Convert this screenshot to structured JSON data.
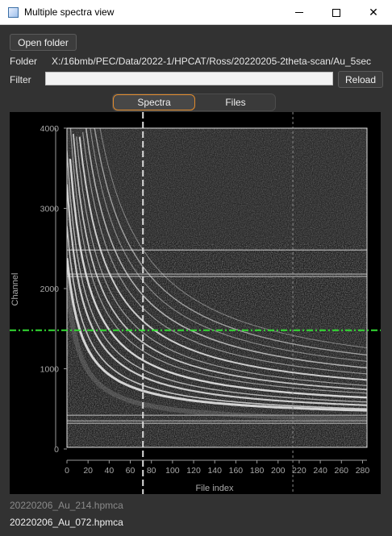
{
  "window": {
    "title": "Multiple spectra view",
    "controls": [
      "minimize-icon",
      "maximize-icon",
      "close-icon"
    ]
  },
  "toolbar": {
    "open_folder_label": "Open folder",
    "folder_label": "Folder",
    "folder_path": "X:/16bmb/PEC/Data/2022-1/HPCAT/Ross/20220205-2theta-scan/Au_5sec",
    "filter_label": "Filter",
    "filter_value": "",
    "reload_label": "Reload"
  },
  "tabs": [
    {
      "label": "Spectra",
      "active": true
    },
    {
      "label": "Files",
      "active": false
    }
  ],
  "chart_data": {
    "type": "heatmap",
    "xlabel": "File index",
    "ylabel": "Channel",
    "x_ticks": [
      0,
      20,
      40,
      60,
      80,
      100,
      120,
      140,
      160,
      180,
      200,
      220,
      240,
      260,
      280
    ],
    "y_ticks": [
      0,
      1000,
      2000,
      3000,
      4000
    ],
    "xlim": [
      0,
      285
    ],
    "ylim": [
      0,
      4000
    ],
    "cursors": {
      "vertical_selected_index": 72,
      "vertical_secondary_index": 214,
      "horizontal_channel": 1480
    },
    "background_color": "#000000",
    "cursor_colors": {
      "vertical": "#dcdcdc",
      "horizontal": "#33dd33"
    }
  },
  "file_list": [
    {
      "name": "20220206_Au_214.hpmca",
      "dimmed": true
    },
    {
      "name": "20220206_Au_072.hpmca",
      "dimmed": false
    }
  ]
}
